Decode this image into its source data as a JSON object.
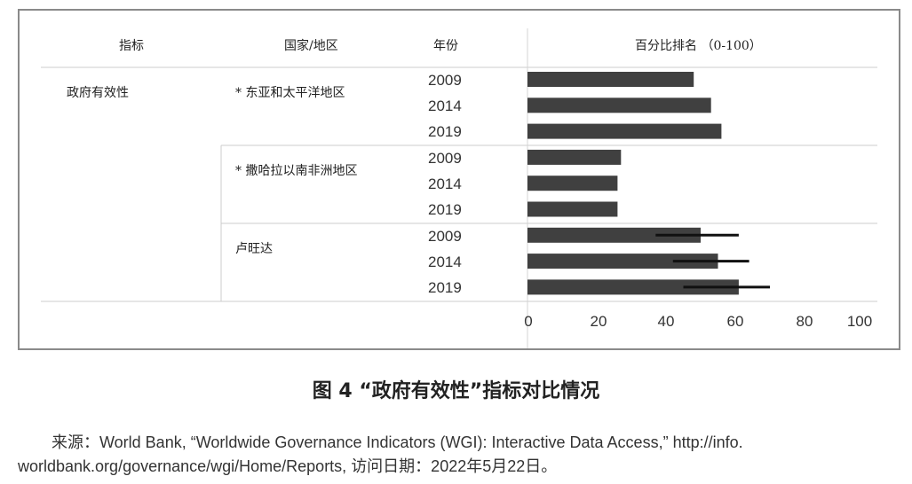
{
  "table_headers": {
    "indicator": "指标",
    "country": "国家/地区",
    "year": "年份",
    "rank": "百分比排名 （0-100）"
  },
  "indicator_label": "政府有效性",
  "chart_data": {
    "type": "bar",
    "orientation": "horizontal",
    "title": "图 4 “政府有效性”指标对比情况",
    "xlabel": "百分比排名 （0-100）",
    "xlim": [
      0,
      100
    ],
    "x_ticks": [
      "0",
      "20",
      "40",
      "60",
      "80",
      "100"
    ],
    "groups": [
      {
        "name": "* 东亚和太平洋地区",
        "bars": [
          {
            "year": "2009",
            "value": 48
          },
          {
            "year": "2014",
            "value": 53
          },
          {
            "year": "2019",
            "value": 56
          }
        ]
      },
      {
        "name": "* 撒哈拉以南非洲地区",
        "bars": [
          {
            "year": "2009",
            "value": 27
          },
          {
            "year": "2014",
            "value": 26
          },
          {
            "year": "2019",
            "value": 26
          }
        ]
      },
      {
        "name": "卢旺达",
        "bars": [
          {
            "year": "2009",
            "value": 50,
            "ci": [
              37,
              61
            ]
          },
          {
            "year": "2014",
            "value": 55,
            "ci": [
              42,
              64
            ]
          },
          {
            "year": "2019",
            "value": 61,
            "ci": [
              45,
              70
            ]
          }
        ]
      }
    ],
    "colors": {
      "bar": "#404040",
      "error_bar": "#111111",
      "grid": "#cccccc"
    }
  },
  "caption": "图 4 “政府有效性”指标对比情况",
  "source_line1": "来源：World Bank, “Worldwide Governance Indicators (WGI): Interactive Data Access,” http://info.",
  "source_line2": "worldbank.org/governance/wgi/Home/Reports, 访问日期：2022年5月22日。"
}
